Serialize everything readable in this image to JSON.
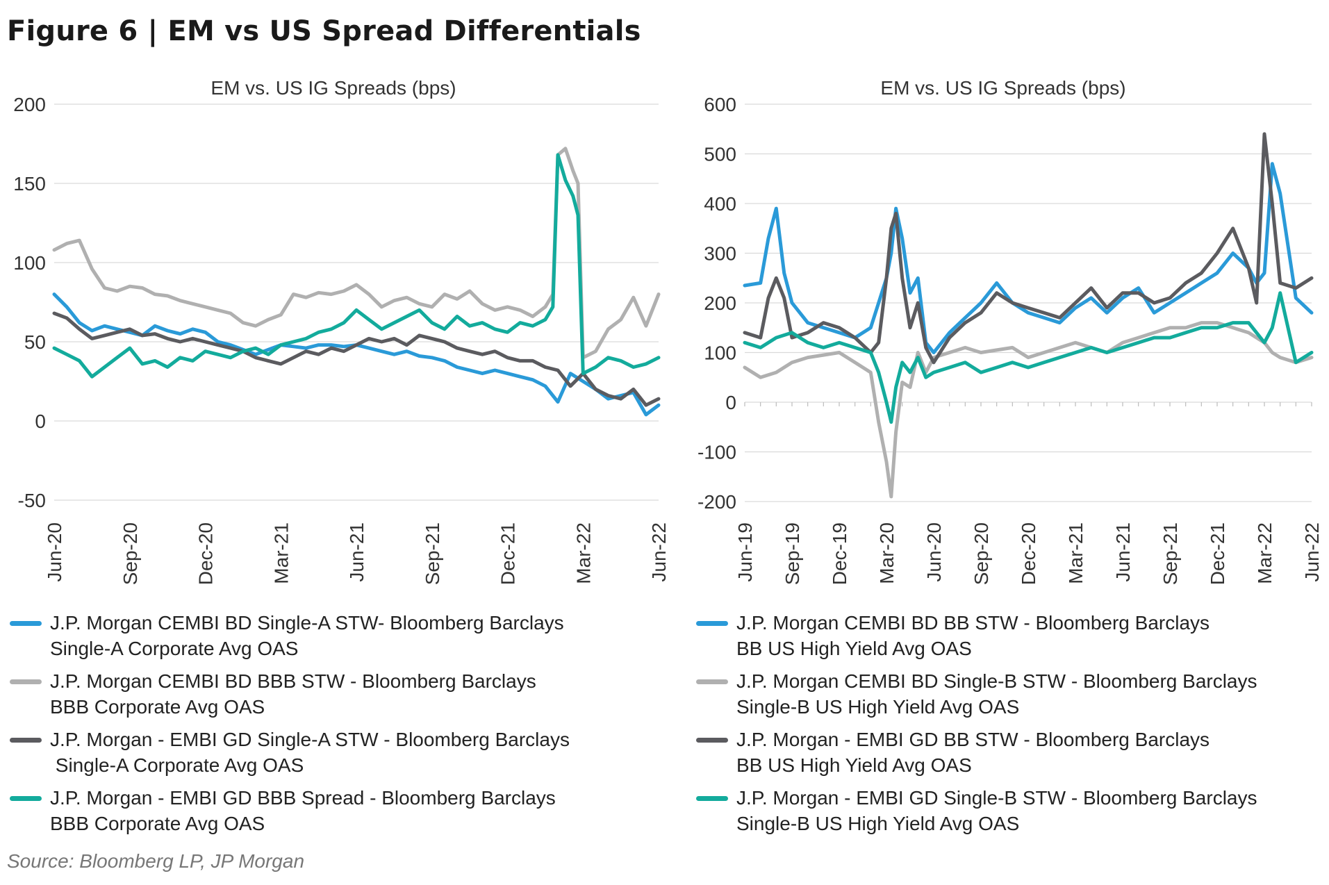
{
  "figure_title": "Figure 6  |  EM vs US Spread Differentials",
  "source": "Source: Bloomberg LP, JP Morgan",
  "colors": {
    "blue": "#2a9ad8",
    "lightgray": "#b0b0b0",
    "darkgray": "#5b5b5f",
    "teal": "#13ab9c"
  },
  "legend_left": [
    {
      "color": "#2a9ad8",
      "line1": "J.P. Morgan CEMBI BD Single-A STW- Bloomberg Barclays",
      "line2": "Single-A Corporate Avg OAS"
    },
    {
      "color": "#b0b0b0",
      "line1": "J.P. Morgan CEMBI BD BBB STW - Bloomberg Barclays",
      "line2": "BBB Corporate Avg OAS"
    },
    {
      "color": "#5b5b5f",
      "line1": "J.P. Morgan - EMBI GD Single-A STW - Bloomberg Barclays",
      "line2": " Single-A Corporate Avg OAS"
    },
    {
      "color": "#13ab9c",
      "line1": "J.P. Morgan - EMBI GD BBB Spread - Bloomberg Barclays",
      "line2": "BBB Corporate Avg OAS"
    }
  ],
  "legend_right": [
    {
      "color": "#2a9ad8",
      "line1": "J.P. Morgan CEMBI BD BB STW - Bloomberg Barclays",
      "line2": "BB US High Yield Avg OAS"
    },
    {
      "color": "#b0b0b0",
      "line1": "J.P. Morgan CEMBI BD Single-B STW - Bloomberg Barclays",
      "line2": "Single-B US High Yield Avg OAS"
    },
    {
      "color": "#5b5b5f",
      "line1": "J.P. Morgan - EMBI GD BB STW - Bloomberg Barclays",
      "line2": "BB US High Yield Avg OAS"
    },
    {
      "color": "#13ab9c",
      "line1": "J.P. Morgan - EMBI GD Single-B STW - Bloomberg Barclays",
      "line2": "Single-B US High Yield Avg OAS"
    }
  ],
  "chart_data": [
    {
      "type": "line",
      "title": "EM vs. US IG Spreads (bps)",
      "ylim": [
        -50,
        200
      ],
      "yticks": [
        "200",
        "150",
        "100",
        "50",
        "0",
        "-50"
      ],
      "ytick_values": [
        200,
        150,
        100,
        50,
        0,
        -50
      ],
      "xlim": [
        0,
        24
      ],
      "xticks": [
        "Jun-20",
        "Sep-20",
        "Dec-20",
        "Mar-21",
        "Jun-21",
        "Sep-21",
        "Dec-21",
        "Mar-22",
        "Jun-22"
      ],
      "xtick_values": [
        0,
        3,
        6,
        9,
        12,
        15,
        18,
        21,
        24
      ],
      "grid": "horizontal",
      "series": [
        {
          "color": "#b0b0b0",
          "x": [
            0,
            0.5,
            1,
            1.5,
            2,
            2.5,
            3,
            3.5,
            4,
            4.5,
            5,
            5.5,
            6,
            6.5,
            7,
            7.5,
            8,
            8.5,
            9,
            9.5,
            10,
            10.5,
            11,
            11.5,
            12,
            12.5,
            13,
            13.5,
            14,
            14.5,
            15,
            15.5,
            16,
            16.5,
            17,
            17.5,
            18,
            18.5,
            19,
            19.5,
            19.8,
            20,
            20.3,
            20.6,
            20.8,
            21,
            21.5,
            22,
            22.5,
            23,
            23.5,
            24
          ],
          "y": [
            108,
            112,
            114,
            96,
            84,
            82,
            85,
            84,
            80,
            79,
            76,
            74,
            72,
            70,
            68,
            62,
            60,
            64,
            67,
            80,
            78,
            81,
            80,
            82,
            86,
            80,
            72,
            76,
            78,
            74,
            72,
            80,
            77,
            82,
            74,
            70,
            72,
            70,
            66,
            72,
            80,
            168,
            172,
            158,
            150,
            40,
            44,
            58,
            64,
            78,
            60,
            80
          ]
        },
        {
          "color": "#2a9ad8",
          "x": [
            0,
            0.5,
            1,
            1.5,
            2,
            2.5,
            3,
            3.5,
            4,
            4.5,
            5,
            5.5,
            6,
            6.5,
            7,
            7.5,
            8,
            8.5,
            9,
            9.5,
            10,
            10.5,
            11,
            11.5,
            12,
            12.5,
            13,
            13.5,
            14,
            14.5,
            15,
            15.5,
            16,
            16.5,
            17,
            17.5,
            18,
            18.5,
            19,
            19.5,
            20,
            20.5,
            21,
            21.5,
            22,
            22.5,
            23,
            23.5,
            24
          ],
          "y": [
            80,
            72,
            62,
            57,
            60,
            58,
            56,
            54,
            60,
            57,
            55,
            58,
            56,
            50,
            48,
            45,
            42,
            45,
            48,
            47,
            46,
            48,
            48,
            47,
            48,
            46,
            44,
            42,
            44,
            41,
            40,
            38,
            34,
            32,
            30,
            32,
            30,
            28,
            26,
            22,
            12,
            30,
            25,
            20,
            14,
            16,
            18,
            4,
            10
          ]
        },
        {
          "color": "#5b5b5f",
          "x": [
            0,
            0.5,
            1,
            1.5,
            2,
            2.5,
            3,
            3.5,
            4,
            4.5,
            5,
            5.5,
            6,
            6.5,
            7,
            7.5,
            8,
            8.5,
            9,
            9.5,
            10,
            10.5,
            11,
            11.5,
            12,
            12.5,
            13,
            13.5,
            14,
            14.5,
            15,
            15.5,
            16,
            16.5,
            17,
            17.5,
            18,
            18.5,
            19,
            19.5,
            20,
            20.5,
            21,
            21.5,
            22,
            22.5,
            23,
            23.5,
            24
          ],
          "y": [
            68,
            65,
            58,
            52,
            54,
            56,
            58,
            54,
            55,
            52,
            50,
            52,
            50,
            48,
            46,
            44,
            40,
            38,
            36,
            40,
            44,
            42,
            46,
            44,
            48,
            52,
            50,
            52,
            48,
            54,
            52,
            50,
            46,
            44,
            42,
            44,
            40,
            38,
            38,
            34,
            32,
            22,
            30,
            20,
            16,
            14,
            20,
            10,
            14
          ]
        },
        {
          "color": "#13ab9c",
          "x": [
            0,
            0.5,
            1,
            1.5,
            2,
            2.5,
            3,
            3.5,
            4,
            4.5,
            5,
            5.5,
            6,
            6.5,
            7,
            7.5,
            8,
            8.5,
            9,
            9.5,
            10,
            10.5,
            11,
            11.5,
            12,
            12.5,
            13,
            13.5,
            14,
            14.5,
            15,
            15.5,
            16,
            16.5,
            17,
            17.5,
            18,
            18.5,
            19,
            19.5,
            19.8,
            20,
            20.3,
            20.6,
            20.8,
            21,
            21.5,
            22,
            22.5,
            23,
            23.5,
            24
          ],
          "y": [
            46,
            42,
            38,
            28,
            34,
            40,
            46,
            36,
            38,
            34,
            40,
            38,
            44,
            42,
            40,
            44,
            46,
            42,
            48,
            50,
            52,
            56,
            58,
            62,
            70,
            64,
            58,
            62,
            66,
            70,
            62,
            58,
            66,
            60,
            62,
            58,
            56,
            62,
            60,
            64,
            72,
            168,
            152,
            142,
            130,
            30,
            34,
            40,
            38,
            34,
            36,
            40
          ]
        }
      ]
    },
    {
      "type": "line",
      "title": "EM vs. US IG Spreads (bps)",
      "ylim": [
        -200,
        600
      ],
      "yticks": [
        "600",
        "500",
        "400",
        "300",
        "200",
        "100",
        "0",
        "-100",
        "-200"
      ],
      "ytick_values": [
        600,
        500,
        400,
        300,
        200,
        100,
        0,
        -100,
        -200
      ],
      "xlim": [
        0,
        36
      ],
      "xticks": [
        "Jun-19",
        "Sep-19",
        "Dec-19",
        "Mar-20",
        "Jun-20",
        "Sep-20",
        "Dec-20",
        "Mar-21",
        "Jun-21",
        "Sep-21",
        "Dec-21",
        "Mar-22",
        "Jun-22"
      ],
      "xtick_values": [
        0,
        3,
        6,
        9,
        12,
        15,
        18,
        21,
        24,
        27,
        30,
        33,
        36
      ],
      "grid": "horizontal",
      "series": [
        {
          "color": "#b0b0b0",
          "x": [
            0,
            1,
            2,
            3,
            4,
            5,
            6,
            7,
            8,
            8.5,
            9,
            9.3,
            9.6,
            10,
            10.5,
            11,
            11.5,
            12,
            13,
            14,
            15,
            16,
            17,
            18,
            19,
            20,
            21,
            22,
            23,
            24,
            25,
            26,
            27,
            28,
            29,
            30,
            31,
            32,
            32.5,
            33,
            33.5,
            34,
            35,
            36
          ],
          "y": [
            70,
            50,
            60,
            80,
            90,
            95,
            100,
            80,
            60,
            -40,
            -120,
            -190,
            -60,
            40,
            30,
            100,
            60,
            90,
            100,
            110,
            100,
            105,
            110,
            90,
            100,
            110,
            120,
            110,
            100,
            120,
            130,
            140,
            150,
            150,
            160,
            160,
            150,
            140,
            130,
            120,
            100,
            90,
            80,
            90
          ]
        },
        {
          "color": "#2a9ad8",
          "x": [
            0,
            1,
            1.5,
            2,
            2.5,
            3,
            4,
            5,
            6,
            7,
            8,
            8.5,
            9,
            9.3,
            9.6,
            10,
            10.5,
            11,
            11.5,
            12,
            13,
            14,
            15,
            16,
            17,
            18,
            19,
            20,
            21,
            22,
            23,
            24,
            25,
            26,
            27,
            28,
            29,
            30,
            31,
            32,
            32.5,
            33,
            33.5,
            34,
            35,
            36
          ],
          "y": [
            235,
            240,
            330,
            390,
            260,
            200,
            160,
            150,
            140,
            130,
            150,
            200,
            250,
            300,
            390,
            330,
            220,
            250,
            120,
            100,
            140,
            170,
            200,
            240,
            200,
            180,
            170,
            160,
            190,
            210,
            180,
            210,
            230,
            180,
            200,
            220,
            240,
            260,
            300,
            270,
            240,
            260,
            480,
            420,
            210,
            180
          ]
        },
        {
          "color": "#5b5b5f",
          "x": [
            0,
            1,
            1.5,
            2,
            2.5,
            3,
            4,
            5,
            6,
            7,
            8,
            8.5,
            9,
            9.3,
            9.6,
            10,
            10.5,
            11,
            11.5,
            12,
            13,
            14,
            15,
            16,
            17,
            18,
            19,
            20,
            21,
            22,
            23,
            24,
            25,
            26,
            27,
            28,
            29,
            30,
            31,
            32,
            32.5,
            33,
            33.5,
            34,
            35,
            36
          ],
          "y": [
            140,
            130,
            210,
            250,
            210,
            130,
            140,
            160,
            150,
            130,
            100,
            120,
            250,
            350,
            380,
            250,
            150,
            200,
            110,
            80,
            130,
            160,
            180,
            220,
            200,
            190,
            180,
            170,
            200,
            230,
            190,
            220,
            220,
            200,
            210,
            240,
            260,
            300,
            350,
            270,
            200,
            540,
            400,
            240,
            230,
            250
          ]
        },
        {
          "color": "#13ab9c",
          "x": [
            0,
            1,
            2,
            3,
            4,
            5,
            6,
            7,
            8,
            8.5,
            9,
            9.3,
            9.6,
            10,
            10.5,
            11,
            11.5,
            12,
            13,
            14,
            15,
            16,
            17,
            18,
            19,
            20,
            21,
            22,
            23,
            24,
            25,
            26,
            27,
            28,
            29,
            30,
            31,
            32,
            32.5,
            33,
            33.5,
            34,
            35,
            36
          ],
          "y": [
            120,
            110,
            130,
            140,
            120,
            110,
            120,
            110,
            100,
            60,
            0,
            -40,
            30,
            80,
            60,
            90,
            50,
            60,
            70,
            80,
            60,
            70,
            80,
            70,
            80,
            90,
            100,
            110,
            100,
            110,
            120,
            130,
            130,
            140,
            150,
            150,
            160,
            160,
            140,
            120,
            150,
            220,
            80,
            100
          ]
        }
      ]
    }
  ]
}
